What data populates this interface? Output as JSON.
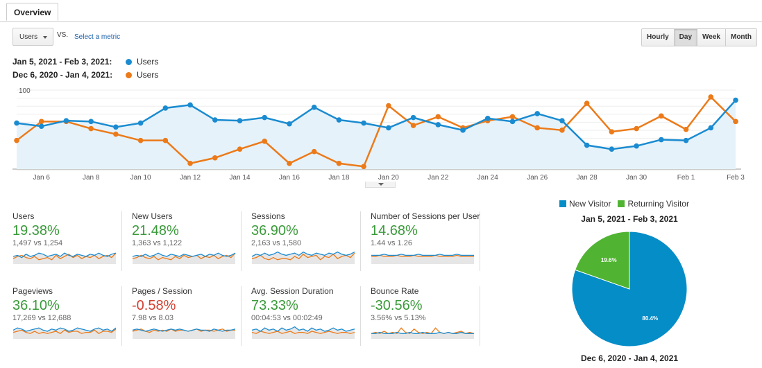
{
  "tabs": {
    "overview_label": "Overview"
  },
  "toolbar": {
    "metric_value": "Users",
    "vs_label": "VS.",
    "select_metric_label": "Select a metric",
    "granularity": [
      {
        "label": "Hourly",
        "active": false
      },
      {
        "label": "Day",
        "active": true
      },
      {
        "label": "Week",
        "active": false
      },
      {
        "label": "Month",
        "active": false
      }
    ]
  },
  "legend": {
    "current_range": "Jan 5, 2021 - Feb 3, 2021:",
    "current_metric": "Users",
    "previous_range": "Dec 6, 2020 - Jan 4, 2021:",
    "previous_metric": "Users"
  },
  "colors": {
    "current": "#1a8bd0",
    "previous": "#ec7a19",
    "new_visitor": "#058dc7",
    "returning_visitor": "#50b432",
    "positive": "#3a9a3a",
    "negative": "#d23f31"
  },
  "chart_data": {
    "type": "line",
    "y_ticks": [
      "100",
      "50"
    ],
    "ylim": [
      0,
      100
    ],
    "x_tick_labels": [
      "Jan 6",
      "Jan 8",
      "Jan 10",
      "Jan 12",
      "Jan 14",
      "Jan 16",
      "Jan 18",
      "Jan 20",
      "Jan 22",
      "Jan 24",
      "Jan 26",
      "Jan 28",
      "Jan 30",
      "Feb 1",
      "Feb 3"
    ],
    "x": [
      "Jan 5",
      "Jan 6",
      "Jan 7",
      "Jan 8",
      "Jan 9",
      "Jan 10",
      "Jan 11",
      "Jan 12",
      "Jan 13",
      "Jan 14",
      "Jan 15",
      "Jan 16",
      "Jan 17",
      "Jan 18",
      "Jan 19",
      "Jan 20",
      "Jan 21",
      "Jan 22",
      "Jan 23",
      "Jan 24",
      "Jan 25",
      "Jan 26",
      "Jan 27",
      "Jan 28",
      "Jan 29",
      "Jan 30",
      "Jan 31",
      "Feb 1",
      "Feb 2",
      "Feb 3"
    ],
    "series": [
      {
        "name": "Users",
        "range": "Jan 5, 2021 - Feb 3, 2021",
        "values": [
          60,
          56,
          63,
          62,
          55,
          60,
          79,
          83,
          64,
          63,
          67,
          59,
          80,
          64,
          60,
          54,
          67,
          58,
          51,
          66,
          62,
          72,
          63,
          32,
          27,
          31,
          39,
          38,
          54,
          89
        ]
      },
      {
        "name": "Users",
        "range": "Dec 6, 2020 - Jan 4, 2021",
        "values": [
          38,
          62,
          62,
          53,
          46,
          38,
          38,
          9,
          16,
          27,
          37,
          9,
          24,
          9,
          5,
          82,
          57,
          68,
          54,
          63,
          68,
          54,
          51,
          85,
          49,
          53,
          69,
          52,
          93,
          62
        ]
      }
    ],
    "grid": true
  },
  "scorecards": [
    {
      "name": "Users",
      "pct": "19.38%",
      "compare": "1,497 vs 1,254",
      "negative": false,
      "spark_current": [
        5,
        6,
        4,
        7,
        5,
        6,
        8,
        7,
        5,
        6,
        7,
        5,
        8,
        6,
        5,
        7,
        6,
        5,
        7,
        6,
        8,
        6,
        5,
        7,
        8
      ],
      "spark_previous": [
        3,
        5,
        6,
        4,
        3,
        5,
        2,
        3,
        4,
        2,
        6,
        3,
        5,
        7,
        4,
        6,
        3,
        5,
        4,
        6,
        3,
        5,
        6,
        4,
        8
      ]
    },
    {
      "name": "New Users",
      "pct": "21.48%",
      "compare": "1,363 vs 1,122",
      "negative": false,
      "spark_current": [
        5,
        6,
        5,
        7,
        5,
        6,
        8,
        6,
        5,
        7,
        6,
        5,
        7,
        6,
        5,
        6,
        7,
        5,
        7,
        6,
        8,
        6,
        5,
        6,
        8
      ],
      "spark_previous": [
        3,
        4,
        6,
        4,
        3,
        5,
        2,
        4,
        3,
        2,
        5,
        3,
        6,
        4,
        5,
        6,
        3,
        5,
        4,
        6,
        3,
        5,
        6,
        4,
        8
      ]
    },
    {
      "name": "Sessions",
      "pct": "36.90%",
      "compare": "2,163 vs 1,580",
      "negative": false,
      "spark_current": [
        5,
        7,
        6,
        8,
        6,
        7,
        9,
        7,
        6,
        7,
        8,
        6,
        9,
        7,
        6,
        8,
        7,
        6,
        8,
        7,
        9,
        7,
        6,
        7,
        9
      ],
      "spark_previous": [
        3,
        4,
        6,
        3,
        2,
        4,
        2,
        3,
        3,
        2,
        5,
        3,
        7,
        4,
        5,
        6,
        2,
        5,
        4,
        7,
        3,
        5,
        6,
        4,
        8
      ]
    },
    {
      "name": "Number of Sessions per User",
      "pct": "14.68%",
      "compare": "1.44 vs 1.26",
      "negative": false,
      "spark_current": [
        6,
        6,
        6,
        7,
        6,
        6,
        6,
        7,
        6,
        6,
        6,
        7,
        6,
        6,
        6,
        6,
        7,
        6,
        6,
        6,
        7,
        6,
        6,
        6,
        6
      ],
      "spark_previous": [
        5,
        5,
        6,
        5,
        5,
        5,
        6,
        5,
        5,
        5,
        6,
        5,
        5,
        5,
        5,
        6,
        5,
        5,
        5,
        5,
        6,
        5,
        5,
        5,
        5
      ]
    },
    {
      "name": "Pageviews",
      "pct": "36.10%",
      "compare": "17,269 vs 12,688",
      "negative": false,
      "spark_current": [
        6,
        8,
        7,
        5,
        6,
        7,
        8,
        6,
        5,
        7,
        6,
        8,
        7,
        5,
        6,
        8,
        7,
        6,
        5,
        7,
        8,
        6,
        7,
        5,
        8
      ],
      "spark_previous": [
        4,
        5,
        6,
        4,
        3,
        5,
        3,
        4,
        3,
        4,
        5,
        3,
        6,
        4,
        5,
        5,
        3,
        4,
        4,
        6,
        3,
        5,
        5,
        4,
        7
      ]
    },
    {
      "name": "Pages / Session",
      "pct": "-0.58%",
      "compare": "7.98 vs 8.03",
      "negative": true,
      "spark_current": [
        6,
        7,
        6,
        5,
        6,
        7,
        6,
        5,
        6,
        7,
        6,
        7,
        6,
        5,
        6,
        7,
        6,
        6,
        5,
        7,
        6,
        5,
        6,
        6,
        7
      ],
      "spark_previous": [
        5,
        6,
        7,
        5,
        4,
        6,
        5,
        6,
        5,
        7,
        5,
        6,
        6,
        5,
        6,
        7,
        5,
        6,
        6,
        5,
        6,
        7,
        5,
        6,
        6
      ]
    },
    {
      "name": "Avg. Session Duration",
      "pct": "73.33%",
      "compare": "00:04:53 vs 00:02:49",
      "negative": false,
      "spark_current": [
        6,
        7,
        5,
        8,
        6,
        7,
        5,
        8,
        6,
        7,
        9,
        6,
        7,
        5,
        8,
        6,
        7,
        5,
        6,
        8,
        6,
        7,
        5,
        6,
        7
      ],
      "spark_previous": [
        4,
        3,
        5,
        4,
        3,
        4,
        5,
        3,
        4,
        5,
        3,
        4,
        4,
        3,
        5,
        4,
        3,
        4,
        5,
        4,
        3,
        4,
        4,
        3,
        4
      ]
    },
    {
      "name": "Bounce Rate",
      "pct": "-30.56%",
      "compare": "3.56% vs 5.13%",
      "negative": false,
      "spark_current": [
        3,
        3,
        4,
        3,
        3,
        3,
        4,
        3,
        3,
        4,
        3,
        3,
        4,
        3,
        3,
        3,
        4,
        3,
        4,
        3,
        3,
        4,
        3,
        3,
        3
      ],
      "spark_previous": [
        3,
        4,
        3,
        5,
        3,
        4,
        3,
        8,
        4,
        3,
        7,
        4,
        3,
        4,
        3,
        8,
        4,
        3,
        4,
        3,
        4,
        5,
        3,
        4,
        3
      ]
    }
  ],
  "pie": {
    "legend_new": "New Visitor",
    "legend_returning": "Returning Visitor",
    "title_top": "Jan 5, 2021 - Feb 3, 2021",
    "title_bottom": "Dec 6, 2020 - Jan 4, 2021",
    "chart_data": {
      "type": "pie",
      "slices": [
        {
          "name": "New Visitor",
          "value": 80.4,
          "label": "80.4%"
        },
        {
          "name": "Returning Visitor",
          "value": 19.6,
          "label": "19.6%"
        }
      ]
    }
  }
}
